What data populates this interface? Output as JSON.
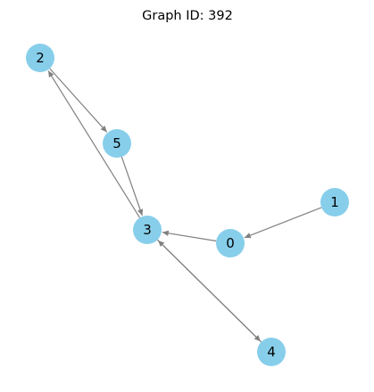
{
  "title": "Graph ID: 392",
  "graph": {
    "directed": true,
    "node_color": "#87CEEB",
    "edge_color": "#808080",
    "nodes": [
      {
        "id": "0",
        "label": "0"
      },
      {
        "id": "1",
        "label": "1"
      },
      {
        "id": "2",
        "label": "2"
      },
      {
        "id": "3",
        "label": "3"
      },
      {
        "id": "4",
        "label": "4"
      },
      {
        "id": "5",
        "label": "5"
      }
    ],
    "edges": [
      {
        "source": "1",
        "target": "0"
      },
      {
        "source": "0",
        "target": "3"
      },
      {
        "source": "3",
        "target": "2"
      },
      {
        "source": "2",
        "target": "5"
      },
      {
        "source": "5",
        "target": "3"
      },
      {
        "source": "3",
        "target": "4"
      },
      {
        "source": "4",
        "target": "3"
      }
    ]
  }
}
